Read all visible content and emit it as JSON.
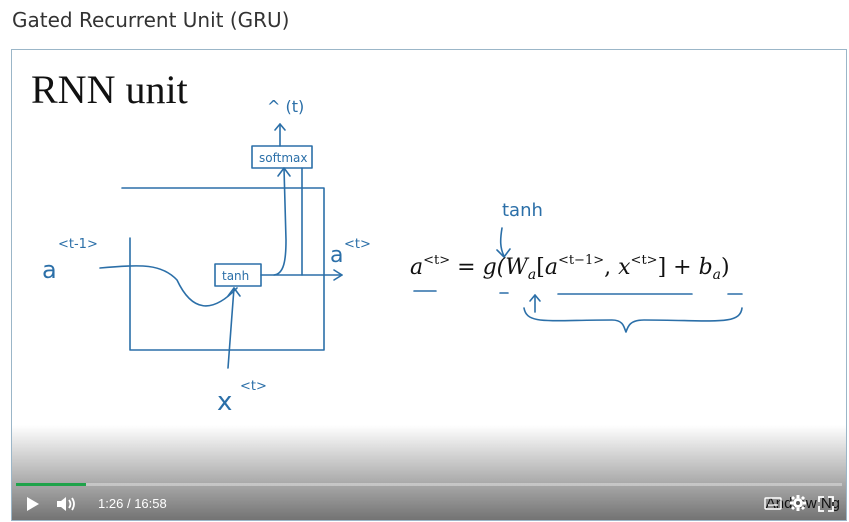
{
  "page": {
    "title": "Gated Recurrent Unit (GRU)"
  },
  "slide": {
    "title": "RNN unit",
    "ink_labels": {
      "y_hat": "^ (t)",
      "softmax": "softmax",
      "tanh_box": "tanh",
      "a_prev": "a",
      "a_prev_sup": "<t-1>",
      "a_out": "a",
      "a_out_sup": "<t>",
      "x_in": "x",
      "x_in_sup": "<t>",
      "tanh_note": "tanh"
    },
    "equation": {
      "lhs": "a",
      "lhs_sup": "<t>",
      "eq": " = ",
      "g": "g(",
      "W": "W",
      "W_sub": "a",
      "bracket_open": "[",
      "a_prev": "a",
      "a_prev_sup": "<t−1>",
      "comma": ", ",
      "x": "x",
      "x_sup": "<t>",
      "bracket_close": "]",
      "plus": " + ",
      "b": "b",
      "b_sub": "a",
      "close": ")"
    }
  },
  "player": {
    "progress": 0.0849,
    "current_time": "1:26",
    "separator": "/",
    "duration": "16:58",
    "watermark": "Andrew Ng",
    "accent": "#1fa34a",
    "icons": [
      "play-icon",
      "volume-icon",
      "captions-icon",
      "gear-icon",
      "fullscreen-icon"
    ]
  }
}
